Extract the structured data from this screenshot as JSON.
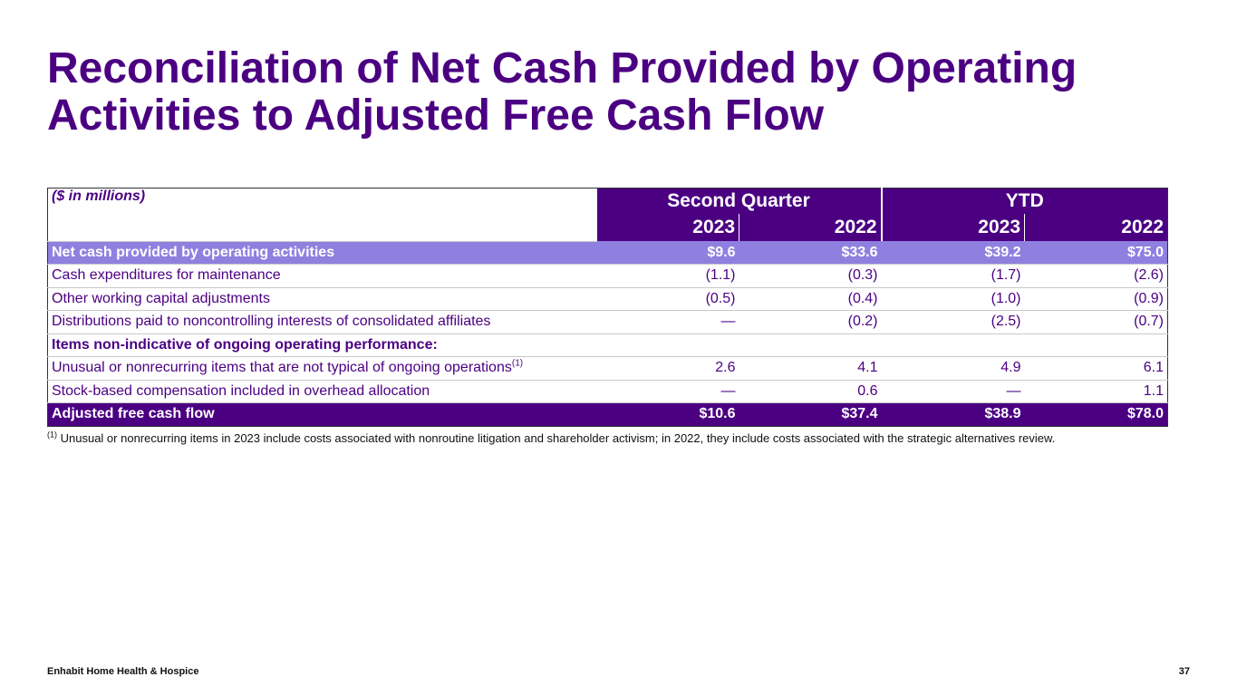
{
  "title": "Reconciliation of Net Cash Provided by Operating Activities to Adjusted Free Cash Flow",
  "table": {
    "units_label": "($ in millions)",
    "group_headers": [
      "Second Quarter",
      "YTD"
    ],
    "year_headers": [
      "2023",
      "2022",
      "2023",
      "2022"
    ],
    "rows": [
      {
        "label": "Net cash provided by operating activities",
        "values": [
          "$9.6",
          "$33.6",
          "$39.2",
          "$75.0"
        ]
      },
      {
        "label": "Cash expenditures for maintenance",
        "values": [
          "(1.1)",
          "(0.3)",
          "(1.7)",
          "(2.6)"
        ]
      },
      {
        "label": "Other working capital adjustments",
        "values": [
          "(0.5)",
          "(0.4)",
          "(1.0)",
          "(0.9)"
        ]
      },
      {
        "label": "Distributions paid to noncontrolling interests of consolidated affiliates",
        "values": [
          "—",
          "(0.2)",
          "(2.5)",
          "(0.7)"
        ]
      },
      {
        "label": "Items non-indicative of ongoing operating performance:",
        "values": [
          "",
          "",
          "",
          ""
        ]
      },
      {
        "label": "Unusual or nonrecurring items that are not typical of ongoing operations",
        "footnote_ref": "(1)",
        "values": [
          "2.6",
          "4.1",
          "4.9",
          "6.1"
        ]
      },
      {
        "label": "Stock-based compensation included in overhead allocation",
        "values": [
          "—",
          "0.6",
          "—",
          "1.1"
        ]
      },
      {
        "label": "Adjusted free cash flow",
        "values": [
          "$10.6",
          "$37.4",
          "$38.9",
          "$78.0"
        ]
      }
    ]
  },
  "footnote": {
    "marker": "(1)",
    "text": "Unusual or nonrecurring items in 2023 include costs associated with nonroutine litigation and shareholder activism; in 2022, they include costs associated with the strategic alternatives review."
  },
  "footer": {
    "company": "Enhabit Home Health & Hospice",
    "page_number": "37"
  },
  "colors": {
    "brand_purple": "#4b0082",
    "highlight_lavender": "#8f80e0"
  }
}
